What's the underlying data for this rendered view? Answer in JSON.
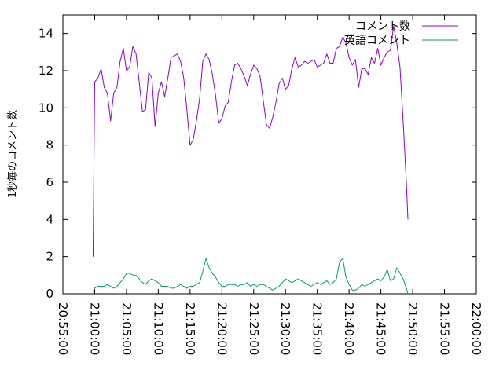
{
  "chart_data": {
    "type": "line",
    "title": "",
    "xlabel": "",
    "ylabel": "1秒毎のコメント数",
    "ylim": [
      0,
      15
    ],
    "xlim": [
      "20:55:00",
      "22:00:00"
    ],
    "grid": false,
    "legend_position": "top-right",
    "yticks": [
      "0",
      "2",
      "4",
      "6",
      "8",
      "10",
      "12",
      "14"
    ],
    "xticks": [
      "20:55:00",
      "21:00:00",
      "21:05:00",
      "21:10:00",
      "21:15:00",
      "21:20:00",
      "21:25:00",
      "21:30:00",
      "21:35:00",
      "21:40:00",
      "21:45:00",
      "21:50:00",
      "21:55:00",
      "22:00:00"
    ],
    "series": [
      {
        "name": "コメント数",
        "color": "#9400d3",
        "points": [
          [
            "20:59:45",
            2.0
          ],
          [
            "21:00:00",
            11.4
          ],
          [
            "21:00:30",
            11.6
          ],
          [
            "21:01:00",
            12.1
          ],
          [
            "21:01:30",
            11.1
          ],
          [
            "21:02:00",
            10.8
          ],
          [
            "21:02:30",
            9.3
          ],
          [
            "21:03:00",
            10.8
          ],
          [
            "21:03:30",
            11.1
          ],
          [
            "21:04:00",
            12.5
          ],
          [
            "21:04:30",
            13.2
          ],
          [
            "21:05:00",
            12.0
          ],
          [
            "21:05:30",
            12.2
          ],
          [
            "21:06:00",
            13.3
          ],
          [
            "21:06:30",
            12.9
          ],
          [
            "21:07:00",
            11.4
          ],
          [
            "21:07:30",
            9.8
          ],
          [
            "21:08:00",
            9.9
          ],
          [
            "21:08:30",
            11.9
          ],
          [
            "21:09:00",
            11.6
          ],
          [
            "21:09:30",
            9.0
          ],
          [
            "21:10:00",
            10.8
          ],
          [
            "21:10:30",
            11.4
          ],
          [
            "21:11:00",
            10.6
          ],
          [
            "21:11:30",
            11.6
          ],
          [
            "21:12:00",
            12.7
          ],
          [
            "21:12:30",
            12.8
          ],
          [
            "21:13:00",
            12.9
          ],
          [
            "21:13:30",
            12.5
          ],
          [
            "21:14:00",
            11.6
          ],
          [
            "21:14:30",
            9.9
          ],
          [
            "21:15:00",
            8.0
          ],
          [
            "21:15:30",
            8.3
          ],
          [
            "21:16:00",
            9.3
          ],
          [
            "21:16:30",
            10.5
          ],
          [
            "21:17:00",
            12.5
          ],
          [
            "21:17:30",
            12.9
          ],
          [
            "21:18:00",
            12.6
          ],
          [
            "21:18:30",
            11.8
          ],
          [
            "21:19:00",
            10.7
          ],
          [
            "21:19:30",
            9.2
          ],
          [
            "21:20:00",
            9.4
          ],
          [
            "21:20:30",
            10.1
          ],
          [
            "21:21:00",
            10.3
          ],
          [
            "21:21:30",
            11.4
          ],
          [
            "21:22:00",
            12.3
          ],
          [
            "21:22:30",
            12.4
          ],
          [
            "21:23:00",
            12.1
          ],
          [
            "21:23:30",
            11.7
          ],
          [
            "21:24:00",
            11.2
          ],
          [
            "21:24:30",
            11.8
          ],
          [
            "21:25:00",
            12.3
          ],
          [
            "21:25:30",
            12.1
          ],
          [
            "21:26:00",
            11.7
          ],
          [
            "21:26:30",
            10.4
          ],
          [
            "21:27:00",
            9.1
          ],
          [
            "21:27:30",
            8.9
          ],
          [
            "21:28:00",
            9.5
          ],
          [
            "21:28:30",
            10.3
          ],
          [
            "21:29:00",
            11.3
          ],
          [
            "21:29:30",
            11.6
          ],
          [
            "21:30:00",
            11.0
          ],
          [
            "21:30:30",
            11.2
          ],
          [
            "21:31:00",
            12.1
          ],
          [
            "21:31:30",
            12.7
          ],
          [
            "21:32:00",
            12.2
          ],
          [
            "21:32:30",
            12.3
          ],
          [
            "21:33:00",
            12.5
          ],
          [
            "21:33:30",
            12.4
          ],
          [
            "21:34:00",
            12.5
          ],
          [
            "21:34:30",
            12.6
          ],
          [
            "21:35:00",
            12.2
          ],
          [
            "21:35:30",
            12.3
          ],
          [
            "21:36:00",
            12.4
          ],
          [
            "21:36:30",
            12.9
          ],
          [
            "21:37:00",
            12.4
          ],
          [
            "21:37:30",
            12.4
          ],
          [
            "21:38:00",
            13.2
          ],
          [
            "21:38:30",
            13.3
          ],
          [
            "21:39:00",
            13.8
          ],
          [
            "21:39:30",
            13.5
          ],
          [
            "21:40:00",
            12.7
          ],
          [
            "21:40:30",
            12.3
          ],
          [
            "21:41:00",
            12.6
          ],
          [
            "21:41:30",
            11.1
          ],
          [
            "21:42:00",
            12.1
          ],
          [
            "21:42:30",
            12.1
          ],
          [
            "21:43:00",
            11.8
          ],
          [
            "21:43:30",
            12.7
          ],
          [
            "21:44:00",
            12.4
          ],
          [
            "21:44:30",
            13.2
          ],
          [
            "21:45:00",
            12.3
          ],
          [
            "21:45:30",
            12.7
          ],
          [
            "21:46:00",
            13.0
          ],
          [
            "21:46:30",
            13.1
          ],
          [
            "21:47:00",
            14.4
          ],
          [
            "21:47:30",
            13.5
          ],
          [
            "21:48:00",
            12.2
          ],
          [
            "21:48:30",
            9.3
          ],
          [
            "21:49:00",
            6.0
          ],
          [
            "21:49:15",
            4.0
          ]
        ]
      },
      {
        "name": "英語コメント",
        "color": "#009e73",
        "points": [
          [
            "20:59:45",
            0.1
          ],
          [
            "21:00:00",
            0.3
          ],
          [
            "21:00:30",
            0.4
          ],
          [
            "21:01:00",
            0.4
          ],
          [
            "21:01:30",
            0.4
          ],
          [
            "21:02:00",
            0.5
          ],
          [
            "21:02:30",
            0.4
          ],
          [
            "21:03:00",
            0.3
          ],
          [
            "21:03:30",
            0.4
          ],
          [
            "21:04:00",
            0.6
          ],
          [
            "21:04:30",
            0.8
          ],
          [
            "21:05:00",
            1.1
          ],
          [
            "21:05:30",
            1.1
          ],
          [
            "21:06:00",
            1.0
          ],
          [
            "21:06:30",
            1.0
          ],
          [
            "21:07:00",
            0.8
          ],
          [
            "21:07:30",
            0.6
          ],
          [
            "21:08:00",
            0.5
          ],
          [
            "21:08:30",
            0.7
          ],
          [
            "21:09:00",
            0.8
          ],
          [
            "21:09:30",
            0.7
          ],
          [
            "21:10:00",
            0.6
          ],
          [
            "21:10:30",
            0.4
          ],
          [
            "21:11:00",
            0.4
          ],
          [
            "21:11:30",
            0.4
          ],
          [
            "21:12:00",
            0.3
          ],
          [
            "21:12:30",
            0.3
          ],
          [
            "21:13:00",
            0.4
          ],
          [
            "21:13:30",
            0.5
          ],
          [
            "21:14:00",
            0.4
          ],
          [
            "21:14:30",
            0.3
          ],
          [
            "21:15:00",
            0.4
          ],
          [
            "21:15:30",
            0.4
          ],
          [
            "21:16:00",
            0.5
          ],
          [
            "21:16:30",
            0.6
          ],
          [
            "21:17:00",
            1.2
          ],
          [
            "21:17:30",
            1.9
          ],
          [
            "21:18:00",
            1.4
          ],
          [
            "21:18:30",
            1.1
          ],
          [
            "21:19:00",
            0.9
          ],
          [
            "21:19:30",
            0.6
          ],
          [
            "21:20:00",
            0.4
          ],
          [
            "21:20:30",
            0.4
          ],
          [
            "21:21:00",
            0.5
          ],
          [
            "21:21:30",
            0.5
          ],
          [
            "21:22:00",
            0.5
          ],
          [
            "21:22:30",
            0.4
          ],
          [
            "21:23:00",
            0.5
          ],
          [
            "21:23:30",
            0.5
          ],
          [
            "21:24:00",
            0.6
          ],
          [
            "21:24:30",
            0.4
          ],
          [
            "21:25:00",
            0.5
          ],
          [
            "21:25:30",
            0.4
          ],
          [
            "21:26:00",
            0.5
          ],
          [
            "21:26:30",
            0.5
          ],
          [
            "21:27:00",
            0.4
          ],
          [
            "21:27:30",
            0.3
          ],
          [
            "21:28:00",
            0.2
          ],
          [
            "21:28:30",
            0.3
          ],
          [
            "21:29:00",
            0.4
          ],
          [
            "21:29:30",
            0.6
          ],
          [
            "21:30:00",
            0.8
          ],
          [
            "21:30:30",
            0.7
          ],
          [
            "21:31:00",
            0.6
          ],
          [
            "21:31:30",
            0.7
          ],
          [
            "21:32:00",
            0.8
          ],
          [
            "21:32:30",
            0.7
          ],
          [
            "21:33:00",
            0.6
          ],
          [
            "21:33:30",
            0.5
          ],
          [
            "21:34:00",
            0.4
          ],
          [
            "21:34:30",
            0.5
          ],
          [
            "21:35:00",
            0.6
          ],
          [
            "21:35:30",
            0.5
          ],
          [
            "21:36:00",
            0.6
          ],
          [
            "21:36:30",
            0.7
          ],
          [
            "21:37:00",
            0.5
          ],
          [
            "21:37:30",
            0.6
          ],
          [
            "21:38:00",
            0.8
          ],
          [
            "21:38:30",
            1.7
          ],
          [
            "21:39:00",
            1.9
          ],
          [
            "21:39:30",
            0.9
          ],
          [
            "21:40:00",
            0.5
          ],
          [
            "21:40:30",
            0.2
          ],
          [
            "21:41:00",
            0.2
          ],
          [
            "21:41:30",
            0.3
          ],
          [
            "21:42:00",
            0.5
          ],
          [
            "21:42:30",
            0.4
          ],
          [
            "21:43:00",
            0.5
          ],
          [
            "21:43:30",
            0.6
          ],
          [
            "21:44:00",
            0.7
          ],
          [
            "21:44:30",
            0.8
          ],
          [
            "21:45:00",
            0.7
          ],
          [
            "21:45:30",
            0.9
          ],
          [
            "21:46:00",
            1.3
          ],
          [
            "21:46:30",
            0.7
          ],
          [
            "21:47:00",
            0.8
          ],
          [
            "21:47:30",
            1.4
          ],
          [
            "21:48:00",
            1.1
          ],
          [
            "21:48:30",
            0.8
          ],
          [
            "21:49:00",
            0.3
          ],
          [
            "21:49:15",
            0.0
          ]
        ]
      }
    ]
  }
}
